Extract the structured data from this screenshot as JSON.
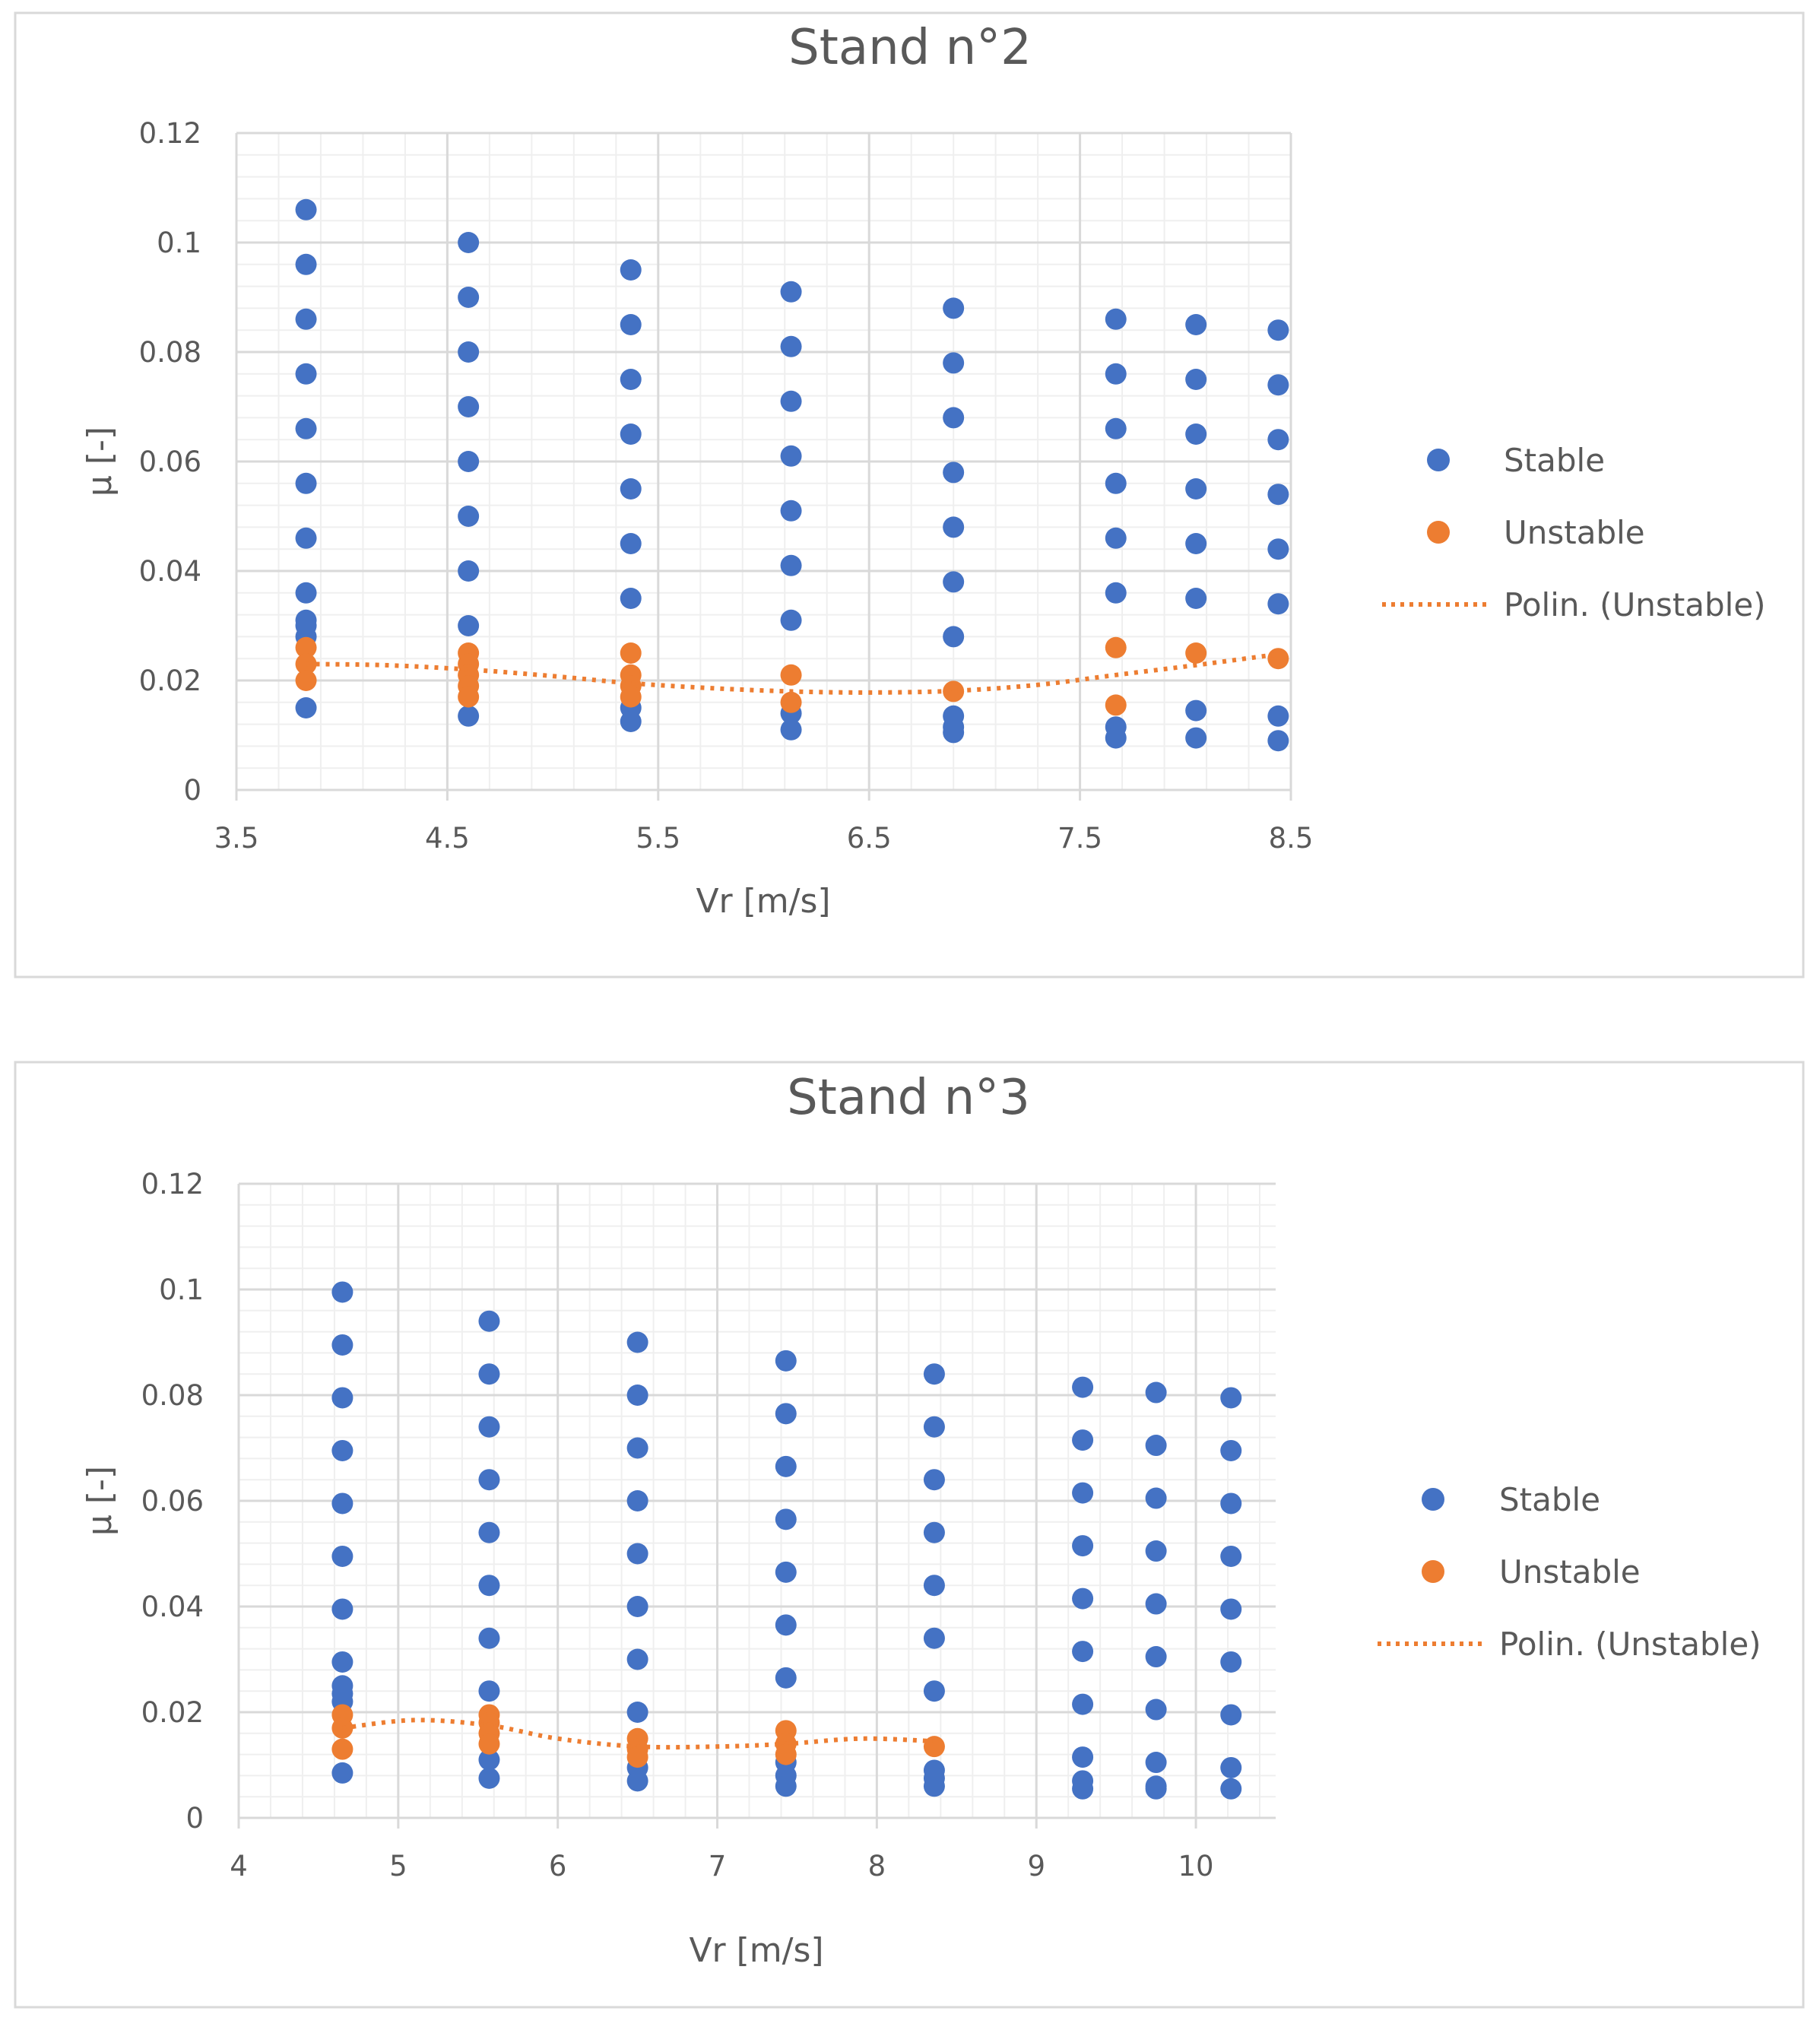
{
  "colors": {
    "stable": "#4472C4",
    "unstable": "#ED7D31",
    "grid_major": "#d9d9d9",
    "grid_minor": "#efefef",
    "text": "#595959"
  },
  "legend": {
    "stable": "Stable",
    "unstable": "Unstable",
    "trend": "Polin. (Unstable)"
  },
  "chart_data": [
    {
      "type": "scatter",
      "title": "Stand n°2",
      "xlabel": "Vr [m/s]",
      "ylabel": "μ [-]",
      "xlim": [
        3.5,
        8.5
      ],
      "ylim": [
        0,
        0.12
      ],
      "xticks": [
        3.5,
        4.5,
        5.5,
        6.5,
        7.5,
        8.5
      ],
      "xtick_labels": [
        "3.5",
        "4.5",
        "5.5",
        "6.5",
        "7.5",
        "8.5"
      ],
      "yticks": [
        0,
        0.02,
        0.04,
        0.06,
        0.08,
        0.1,
        0.12
      ],
      "ytick_labels": [
        "0",
        "0.02",
        "0.04",
        "0.06",
        "0.08",
        "0.1",
        "0.12"
      ],
      "x_minor": 0.2,
      "y_minor": 0.004,
      "grid": true,
      "legend_position": "right",
      "series": [
        {
          "name": "Stable",
          "points": [
            [
              3.83,
              0.106
            ],
            [
              3.83,
              0.096
            ],
            [
              3.83,
              0.086
            ],
            [
              3.83,
              0.076
            ],
            [
              3.83,
              0.066
            ],
            [
              3.83,
              0.056
            ],
            [
              3.83,
              0.046
            ],
            [
              3.83,
              0.036
            ],
            [
              3.83,
              0.031
            ],
            [
              3.83,
              0.03
            ],
            [
              3.83,
              0.028
            ],
            [
              3.83,
              0.015
            ],
            [
              4.6,
              0.1
            ],
            [
              4.6,
              0.09
            ],
            [
              4.6,
              0.08
            ],
            [
              4.6,
              0.07
            ],
            [
              4.6,
              0.06
            ],
            [
              4.6,
              0.05
            ],
            [
              4.6,
              0.04
            ],
            [
              4.6,
              0.03
            ],
            [
              4.6,
              0.0135
            ],
            [
              5.37,
              0.095
            ],
            [
              5.37,
              0.085
            ],
            [
              5.37,
              0.075
            ],
            [
              5.37,
              0.065
            ],
            [
              5.37,
              0.055
            ],
            [
              5.37,
              0.045
            ],
            [
              5.37,
              0.035
            ],
            [
              5.37,
              0.015
            ],
            [
              5.37,
              0.0125
            ],
            [
              6.13,
              0.091
            ],
            [
              6.13,
              0.081
            ],
            [
              6.13,
              0.071
            ],
            [
              6.13,
              0.061
            ],
            [
              6.13,
              0.051
            ],
            [
              6.13,
              0.041
            ],
            [
              6.13,
              0.031
            ],
            [
              6.13,
              0.014
            ],
            [
              6.13,
              0.011
            ],
            [
              6.9,
              0.088
            ],
            [
              6.9,
              0.078
            ],
            [
              6.9,
              0.068
            ],
            [
              6.9,
              0.058
            ],
            [
              6.9,
              0.048
            ],
            [
              6.9,
              0.038
            ],
            [
              6.9,
              0.028
            ],
            [
              6.9,
              0.0135
            ],
            [
              6.9,
              0.0115
            ],
            [
              6.9,
              0.0105
            ],
            [
              7.67,
              0.086
            ],
            [
              7.67,
              0.076
            ],
            [
              7.67,
              0.066
            ],
            [
              7.67,
              0.056
            ],
            [
              7.67,
              0.046
            ],
            [
              7.67,
              0.036
            ],
            [
              7.67,
              0.0115
            ],
            [
              7.67,
              0.0095
            ],
            [
              8.05,
              0.085
            ],
            [
              8.05,
              0.075
            ],
            [
              8.05,
              0.065
            ],
            [
              8.05,
              0.055
            ],
            [
              8.05,
              0.045
            ],
            [
              8.05,
              0.035
            ],
            [
              8.05,
              0.0145
            ],
            [
              8.05,
              0.0095
            ],
            [
              8.44,
              0.084
            ],
            [
              8.44,
              0.074
            ],
            [
              8.44,
              0.064
            ],
            [
              8.44,
              0.054
            ],
            [
              8.44,
              0.044
            ],
            [
              8.44,
              0.034
            ],
            [
              8.44,
              0.0135
            ],
            [
              8.44,
              0.009
            ]
          ]
        },
        {
          "name": "Unstable",
          "points": [
            [
              3.83,
              0.026
            ],
            [
              3.83,
              0.023
            ],
            [
              3.83,
              0.02
            ],
            [
              4.6,
              0.025
            ],
            [
              4.6,
              0.023
            ],
            [
              4.6,
              0.021
            ],
            [
              4.6,
              0.019
            ],
            [
              4.6,
              0.017
            ],
            [
              5.37,
              0.025
            ],
            [
              5.37,
              0.021
            ],
            [
              5.37,
              0.019
            ],
            [
              5.37,
              0.017
            ],
            [
              6.13,
              0.021
            ],
            [
              6.13,
              0.016
            ],
            [
              6.9,
              0.018
            ],
            [
              7.67,
              0.026
            ],
            [
              7.67,
              0.0155
            ],
            [
              8.05,
              0.025
            ],
            [
              8.44,
              0.024
            ]
          ]
        },
        {
          "name": "Polin. (Unstable)",
          "type": "trendline",
          "points": [
            [
              3.83,
              0.023
            ],
            [
              4.2,
              0.0228
            ],
            [
              4.6,
              0.022
            ],
            [
              5.0,
              0.0208
            ],
            [
              5.37,
              0.0195
            ],
            [
              5.75,
              0.0186
            ],
            [
              6.13,
              0.018
            ],
            [
              6.5,
              0.0178
            ],
            [
              6.9,
              0.0181
            ],
            [
              7.3,
              0.0192
            ],
            [
              7.67,
              0.021
            ],
            [
              8.05,
              0.0228
            ],
            [
              8.44,
              0.0248
            ]
          ]
        }
      ]
    },
    {
      "type": "scatter",
      "title": "Stand n°3",
      "xlabel": "Vr [m/s]",
      "ylabel": "μ [-]",
      "xlim": [
        4,
        10.5
      ],
      "ylim": [
        0,
        0.12
      ],
      "xticks": [
        4,
        5,
        6,
        7,
        8,
        9,
        10
      ],
      "xtick_labels": [
        "4",
        "5",
        "6",
        "7",
        "8",
        "9",
        "10"
      ],
      "yticks": [
        0,
        0.02,
        0.04,
        0.06,
        0.08,
        0.1,
        0.12
      ],
      "ytick_labels": [
        "0",
        "0.02",
        "0.04",
        "0.06",
        "0.08",
        "0.1",
        "0.12"
      ],
      "x_minor": 0.2,
      "y_minor": 0.004,
      "grid": true,
      "legend_position": "right",
      "series": [
        {
          "name": "Stable",
          "points": [
            [
              4.65,
              0.0995
            ],
            [
              4.65,
              0.0895
            ],
            [
              4.65,
              0.0795
            ],
            [
              4.65,
              0.0695
            ],
            [
              4.65,
              0.0595
            ],
            [
              4.65,
              0.0495
            ],
            [
              4.65,
              0.0395
            ],
            [
              4.65,
              0.0295
            ],
            [
              4.65,
              0.025
            ],
            [
              4.65,
              0.0235
            ],
            [
              4.65,
              0.022
            ],
            [
              4.65,
              0.0085
            ],
            [
              5.57,
              0.094
            ],
            [
              5.57,
              0.084
            ],
            [
              5.57,
              0.074
            ],
            [
              5.57,
              0.064
            ],
            [
              5.57,
              0.054
            ],
            [
              5.57,
              0.044
            ],
            [
              5.57,
              0.034
            ],
            [
              5.57,
              0.024
            ],
            [
              5.57,
              0.011
            ],
            [
              5.57,
              0.0075
            ],
            [
              6.5,
              0.09
            ],
            [
              6.5,
              0.08
            ],
            [
              6.5,
              0.07
            ],
            [
              6.5,
              0.06
            ],
            [
              6.5,
              0.05
            ],
            [
              6.5,
              0.04
            ],
            [
              6.5,
              0.03
            ],
            [
              6.5,
              0.02
            ],
            [
              6.5,
              0.0095
            ],
            [
              6.5,
              0.007
            ],
            [
              7.43,
              0.0865
            ],
            [
              7.43,
              0.0765
            ],
            [
              7.43,
              0.0665
            ],
            [
              7.43,
              0.0565
            ],
            [
              7.43,
              0.0465
            ],
            [
              7.43,
              0.0365
            ],
            [
              7.43,
              0.0265
            ],
            [
              7.43,
              0.0105
            ],
            [
              7.43,
              0.008
            ],
            [
              7.43,
              0.006
            ],
            [
              8.36,
              0.084
            ],
            [
              8.36,
              0.074
            ],
            [
              8.36,
              0.064
            ],
            [
              8.36,
              0.054
            ],
            [
              8.36,
              0.044
            ],
            [
              8.36,
              0.034
            ],
            [
              8.36,
              0.024
            ],
            [
              8.36,
              0.009
            ],
            [
              8.36,
              0.0075
            ],
            [
              8.36,
              0.006
            ],
            [
              9.29,
              0.0815
            ],
            [
              9.29,
              0.0715
            ],
            [
              9.29,
              0.0615
            ],
            [
              9.29,
              0.0515
            ],
            [
              9.29,
              0.0415
            ],
            [
              9.29,
              0.0315
            ],
            [
              9.29,
              0.0215
            ],
            [
              9.29,
              0.0115
            ],
            [
              9.29,
              0.007
            ],
            [
              9.29,
              0.0055
            ],
            [
              9.75,
              0.0805
            ],
            [
              9.75,
              0.0705
            ],
            [
              9.75,
              0.0605
            ],
            [
              9.75,
              0.0505
            ],
            [
              9.75,
              0.0405
            ],
            [
              9.75,
              0.0305
            ],
            [
              9.75,
              0.0205
            ],
            [
              9.75,
              0.0105
            ],
            [
              9.75,
              0.006
            ],
            [
              9.75,
              0.0055
            ],
            [
              10.22,
              0.0795
            ],
            [
              10.22,
              0.0695
            ],
            [
              10.22,
              0.0595
            ],
            [
              10.22,
              0.0495
            ],
            [
              10.22,
              0.0395
            ],
            [
              10.22,
              0.0295
            ],
            [
              10.22,
              0.0195
            ],
            [
              10.22,
              0.0095
            ],
            [
              10.22,
              0.0055
            ]
          ]
        },
        {
          "name": "Unstable",
          "points": [
            [
              4.65,
              0.0195
            ],
            [
              4.65,
              0.017
            ],
            [
              4.65,
              0.013
            ],
            [
              5.57,
              0.0195
            ],
            [
              5.57,
              0.018
            ],
            [
              5.57,
              0.016
            ],
            [
              5.57,
              0.014
            ],
            [
              6.5,
              0.015
            ],
            [
              6.5,
              0.013
            ],
            [
              6.5,
              0.0115
            ],
            [
              7.43,
              0.0165
            ],
            [
              7.43,
              0.014
            ],
            [
              7.43,
              0.012
            ],
            [
              8.36,
              0.0135
            ]
          ]
        },
        {
          "name": "Polin. (Unstable)",
          "type": "trendline",
          "points": [
            [
              4.65,
              0.017
            ],
            [
              5.1,
              0.0185
            ],
            [
              5.57,
              0.0175
            ],
            [
              6.0,
              0.015
            ],
            [
              6.5,
              0.0135
            ],
            [
              7.0,
              0.0135
            ],
            [
              7.43,
              0.014
            ],
            [
              7.9,
              0.015
            ],
            [
              8.36,
              0.0145
            ]
          ]
        }
      ]
    }
  ]
}
